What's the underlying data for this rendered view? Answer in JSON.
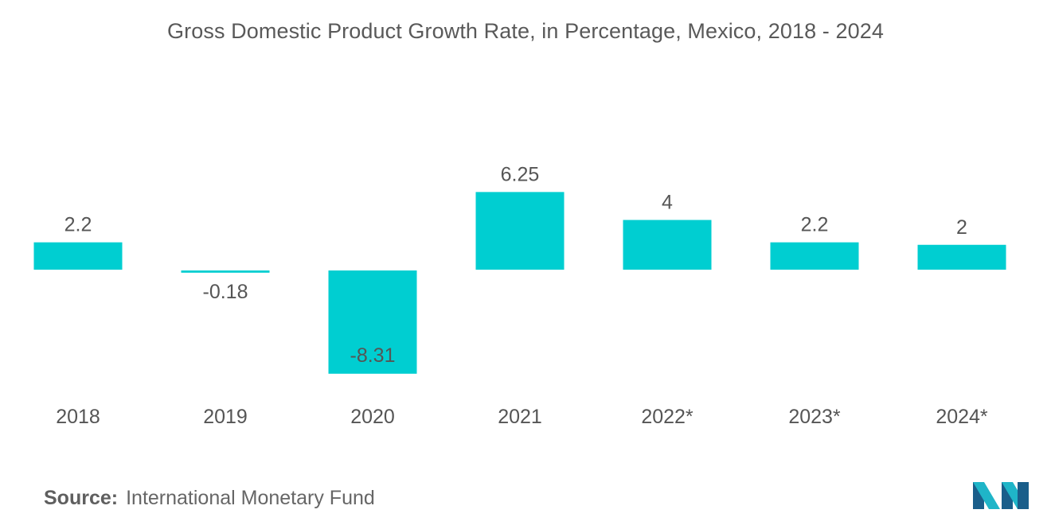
{
  "colors": {
    "bar": "#00CED1",
    "label": "#555555",
    "axis_label": "#555555",
    "logo_dark": "#1a5e8a",
    "logo_light": "#1fb5c8"
  },
  "source": {
    "label": "Source:",
    "text": "International Monetary Fund"
  },
  "logo": {
    "icon": "mordor-intelligence-logo-icon"
  },
  "chart_data": {
    "type": "bar",
    "title": "Gross Domestic Product Growth Rate, in Percentage, Mexico, 2018 - 2024",
    "xlabel": "",
    "ylabel": "",
    "categories": [
      "2018",
      "2019",
      "2020",
      "2021",
      "2022*",
      "2023*",
      "2024*"
    ],
    "values": [
      2.2,
      -0.18,
      -8.31,
      6.25,
      4,
      2.2,
      2
    ],
    "value_labels": [
      "2.2",
      "-0.18",
      "-8.31",
      "6.25",
      "4",
      "2.2",
      "2"
    ],
    "ylim": [
      -8.31,
      6.25
    ],
    "grid": false,
    "legend": "none"
  }
}
